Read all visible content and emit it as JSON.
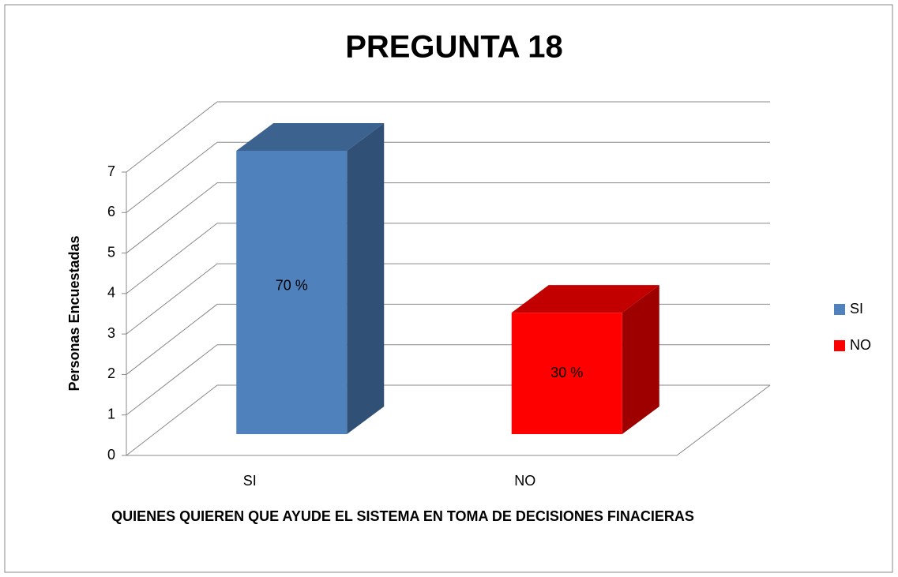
{
  "chart_data": {
    "type": "bar3d",
    "title": "PREGUNTA 18",
    "categories": [
      "SI",
      "NO"
    ],
    "series": [
      {
        "name": "SI",
        "color": "#4f81bd",
        "values": [
          7,
          null
        ]
      },
      {
        "name": "NO",
        "color": "#ff0000",
        "values": [
          null,
          3
        ]
      }
    ],
    "annotations": [
      "70 %",
      "30 %"
    ],
    "ylabel": "Personas Encuestadas",
    "xlabel": "QUIENES QUIEREN QUE AYUDE EL SISTEMA EN TOMA DE DECISIONES FINACIERAS",
    "ylim": [
      0,
      7
    ],
    "yticks": [
      0,
      1,
      2,
      3,
      4,
      5,
      6,
      7
    ],
    "grid": true,
    "legend": "right"
  }
}
